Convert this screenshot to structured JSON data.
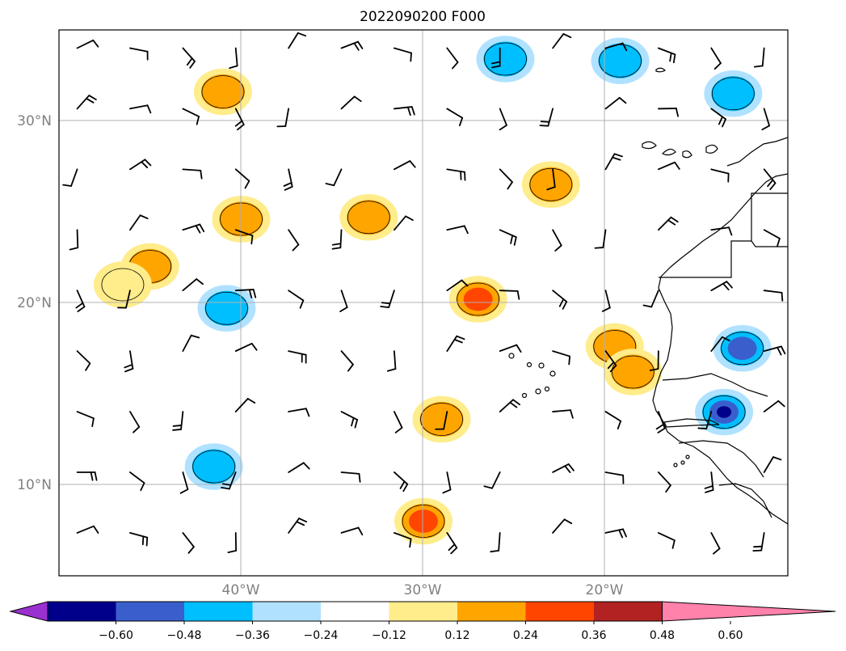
{
  "title": "2022090200 F000",
  "lat_labels": [
    "30°N",
    "20°N",
    "10°N"
  ],
  "lon_labels": [
    "40°W",
    "30°W",
    "20°W"
  ],
  "colorbar": {
    "tick_labels": [
      "−0.60",
      "−0.48",
      "−0.36",
      "−0.24",
      "−0.12",
      "0.12",
      "0.24",
      "0.36",
      "0.48",
      "0.60"
    ],
    "colors": [
      "#9b30d0",
      "#00008b",
      "#3a5fcd",
      "#00bfff",
      "#b0e2ff",
      "#ffffff",
      "#ffec8b",
      "#ffa500",
      "#ff4500",
      "#b22222",
      "#ff82ab"
    ]
  },
  "map": {
    "extent": {
      "lon_min": -50,
      "lon_max": -10,
      "lat_min": 5,
      "lat_max": 35
    },
    "grid": true,
    "coastline_color": "#000000",
    "barb_color": "#000000",
    "features": [
      {
        "lon": -45.0,
        "lat": 22.0,
        "level": 2
      },
      {
        "lon": -46.5,
        "lat": 21.0,
        "level": 1
      },
      {
        "lon": -40.0,
        "lat": 24.6,
        "level": 2
      },
      {
        "lon": -33.0,
        "lat": 24.7,
        "level": 2
      },
      {
        "lon": -27.0,
        "lat": 20.2,
        "level": 3
      },
      {
        "lon": -29.0,
        "lat": 13.6,
        "level": 2
      },
      {
        "lon": -30.0,
        "lat": 8.0,
        "level": 3
      },
      {
        "lon": -41.0,
        "lat": 31.6,
        "level": 2
      },
      {
        "lon": -23.0,
        "lat": 26.5,
        "level": 2
      },
      {
        "lon": -19.5,
        "lat": 17.6,
        "level": 2
      },
      {
        "lon": -18.5,
        "lat": 16.2,
        "level": 2
      },
      {
        "lon": -40.8,
        "lat": 19.7,
        "level": -2
      },
      {
        "lon": -41.5,
        "lat": 11.0,
        "level": -2
      },
      {
        "lon": -13.5,
        "lat": 14.0,
        "level": -4
      },
      {
        "lon": -12.5,
        "lat": 17.5,
        "level": -3
      },
      {
        "lon": -13.0,
        "lat": 31.5,
        "level": -2
      },
      {
        "lon": -25.5,
        "lat": 33.4,
        "level": -2
      },
      {
        "lon": -19.2,
        "lat": 33.3,
        "level": -2
      }
    ]
  }
}
